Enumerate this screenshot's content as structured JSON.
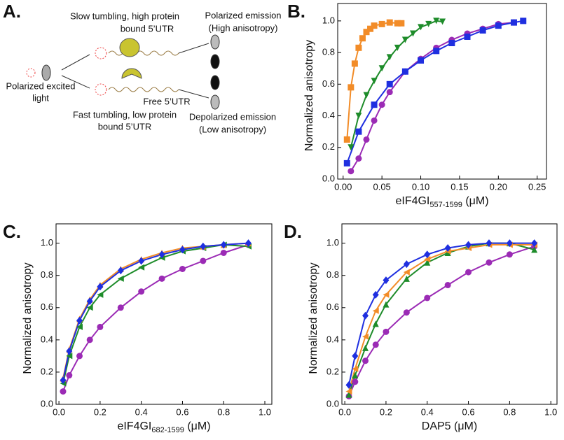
{
  "panel_a": {
    "label": "A.",
    "texts": [
      "Slow tumbling, high protein",
      "bound  5’UTR",
      "Polarized emission",
      "(High anisotropy)",
      "Polarized excited",
      "light",
      "Free 5’UTR",
      "Fast tumbling, low protein",
      "bound 5’UTR",
      "Depolarized emission",
      "(Low anisotropy)"
    ]
  },
  "chart_data": [
    {
      "type": "scatter",
      "panel_label": "B.",
      "xlabel": "eIF4GI",
      "xlabel_sub": "557-1599",
      "xlabel_unit": " (μM)",
      "ylabel": "Normalized anisotropy",
      "xlim": [
        -0.007,
        0.262
      ],
      "ylim": [
        0,
        1.11
      ],
      "xticks": [
        {
          "value": 0,
          "label": "0.00"
        },
        {
          "value": 0.05,
          "label": "0.05"
        },
        {
          "value": 0.1,
          "label": "0.10"
        },
        {
          "value": 0.15,
          "label": "0.15"
        },
        {
          "value": 0.2,
          "label": "0.20"
        },
        {
          "value": 0.25,
          "label": "0.25"
        }
      ],
      "yticks": [
        {
          "value": 0,
          "label": "0.0"
        },
        {
          "value": 0.2,
          "label": "0.2"
        },
        {
          "value": 0.4,
          "label": "0.4"
        },
        {
          "value": 0.6,
          "label": "0.6"
        },
        {
          "value": 0.8,
          "label": "0.8"
        },
        {
          "value": 1,
          "label": "1.0"
        }
      ],
      "series": [
        {
          "color": "#f28c28",
          "marker": "square",
          "fit_line": true,
          "x": [
            0.005,
            0.01,
            0.015,
            0.02,
            0.025,
            0.03,
            0.035,
            0.04,
            0.05,
            0.06,
            0.07,
            0.075
          ],
          "values": [
            0.25,
            0.58,
            0.73,
            0.83,
            0.89,
            0.93,
            0.95,
            0.97,
            0.98,
            0.99,
            0.985,
            0.985
          ]
        },
        {
          "color": "#1e8c2a",
          "marker": "triangle-down",
          "fit_line": true,
          "x": [
            0.01,
            0.02,
            0.03,
            0.04,
            0.05,
            0.06,
            0.07,
            0.08,
            0.09,
            0.1,
            0.11,
            0.12,
            0.128
          ],
          "values": [
            0.2,
            0.4,
            0.53,
            0.62,
            0.7,
            0.77,
            0.83,
            0.88,
            0.92,
            0.96,
            0.98,
            1.0,
            0.995
          ]
        },
        {
          "color": "#9b2bb5",
          "marker": "circle",
          "fit_line": true,
          "x": [
            0.01,
            0.02,
            0.03,
            0.04,
            0.05,
            0.06,
            0.08,
            0.1,
            0.12,
            0.14,
            0.16,
            0.18,
            0.2,
            0.22
          ],
          "values": [
            0.05,
            0.13,
            0.25,
            0.37,
            0.47,
            0.55,
            0.68,
            0.76,
            0.83,
            0.88,
            0.92,
            0.95,
            0.98,
            0.99
          ]
        },
        {
          "color": "#1f2fe0",
          "marker": "square",
          "fit_line": true,
          "x": [
            0.005,
            0.02,
            0.04,
            0.06,
            0.08,
            0.1,
            0.12,
            0.14,
            0.16,
            0.18,
            0.2,
            0.22,
            0.232
          ],
          "values": [
            0.1,
            0.3,
            0.47,
            0.6,
            0.68,
            0.75,
            0.81,
            0.86,
            0.9,
            0.94,
            0.97,
            0.99,
            1.0
          ]
        }
      ]
    },
    {
      "type": "scatter",
      "panel_label": "C.",
      "xlabel": "eIF4GI",
      "xlabel_sub": "682-1599",
      "xlabel_unit": " (μM)",
      "ylabel": "Normalized anisotropy",
      "xlim": [
        -0.014,
        1.034
      ],
      "ylim": [
        0,
        1.12
      ],
      "xticks": [
        {
          "value": 0,
          "label": "0.0"
        },
        {
          "value": 0.2,
          "label": "0.2"
        },
        {
          "value": 0.4,
          "label": "0.4"
        },
        {
          "value": 0.6,
          "label": "0.6"
        },
        {
          "value": 0.8,
          "label": "0.8"
        },
        {
          "value": 1,
          "label": "1.0"
        }
      ],
      "yticks": [
        {
          "value": 0,
          "label": "0.0"
        },
        {
          "value": 0.2,
          "label": "0.2"
        },
        {
          "value": 0.4,
          "label": "0.4"
        },
        {
          "value": 0.6,
          "label": "0.6"
        },
        {
          "value": 0.8,
          "label": "0.8"
        },
        {
          "value": 1,
          "label": "1.0"
        }
      ],
      "series": [
        {
          "color": "#9b2bb5",
          "marker": "circle",
          "fit_line": true,
          "x": [
            0.02,
            0.05,
            0.1,
            0.15,
            0.2,
            0.3,
            0.4,
            0.5,
            0.6,
            0.7,
            0.8,
            0.92
          ],
          "values": [
            0.08,
            0.18,
            0.3,
            0.4,
            0.48,
            0.6,
            0.7,
            0.78,
            0.84,
            0.89,
            0.94,
            0.99
          ]
        },
        {
          "color": "#1e8c2a",
          "marker": "triangle-left",
          "fit_line": true,
          "x": [
            0.02,
            0.05,
            0.1,
            0.15,
            0.2,
            0.3,
            0.4,
            0.5,
            0.6,
            0.7,
            0.8,
            0.92
          ],
          "values": [
            0.13,
            0.3,
            0.48,
            0.6,
            0.68,
            0.78,
            0.85,
            0.91,
            0.95,
            0.97,
            0.99,
            0.98
          ]
        },
        {
          "color": "#f28c28",
          "marker": "triangle-up",
          "fit_line": true,
          "x": [
            0.02,
            0.05,
            0.1,
            0.15,
            0.2,
            0.3,
            0.4,
            0.5,
            0.6,
            0.7,
            0.8,
            0.92
          ],
          "values": [
            0.16,
            0.34,
            0.53,
            0.65,
            0.74,
            0.84,
            0.9,
            0.94,
            0.97,
            0.98,
            0.99,
            1.0
          ]
        },
        {
          "color": "#1f2fe0",
          "marker": "diamond",
          "fit_line": true,
          "x": [
            0.02,
            0.05,
            0.1,
            0.15,
            0.2,
            0.3,
            0.4,
            0.5,
            0.6,
            0.7,
            0.8,
            0.92
          ],
          "values": [
            0.15,
            0.33,
            0.52,
            0.64,
            0.73,
            0.83,
            0.89,
            0.93,
            0.96,
            0.98,
            0.99,
            1.0
          ]
        }
      ]
    },
    {
      "type": "scatter",
      "panel_label": "D.",
      "xlabel": "DAP5",
      "xlabel_unit": " (μM)",
      "ylabel": "Normalized anisotropy",
      "xlim": [
        -0.014,
        1.03
      ],
      "ylim": [
        0,
        1.12
      ],
      "xticks": [
        {
          "value": 0,
          "label": "0.0"
        },
        {
          "value": 0.2,
          "label": "0.2"
        },
        {
          "value": 0.4,
          "label": "0.4"
        },
        {
          "value": 0.6,
          "label": "0.6"
        },
        {
          "value": 0.8,
          "label": "0.8"
        },
        {
          "value": 1,
          "label": "1.0"
        }
      ],
      "yticks": [
        {
          "value": 0,
          "label": "0.0"
        },
        {
          "value": 0.2,
          "label": "0.2"
        },
        {
          "value": 0.4,
          "label": "0.4"
        },
        {
          "value": 0.6,
          "label": "0.6"
        },
        {
          "value": 0.8,
          "label": "0.8"
        },
        {
          "value": 1,
          "label": "1.0"
        }
      ],
      "series": [
        {
          "color": "#9b2bb5",
          "marker": "circle",
          "fit_line": true,
          "x": [
            0.02,
            0.05,
            0.1,
            0.15,
            0.2,
            0.3,
            0.4,
            0.5,
            0.6,
            0.7,
            0.8,
            0.92
          ],
          "values": [
            0.05,
            0.14,
            0.27,
            0.37,
            0.45,
            0.57,
            0.66,
            0.74,
            0.82,
            0.88,
            0.93,
            0.98
          ]
        },
        {
          "color": "#1e8c2a",
          "marker": "triangle-up",
          "fit_line": true,
          "x": [
            0.02,
            0.05,
            0.1,
            0.15,
            0.2,
            0.3,
            0.4,
            0.5,
            0.6,
            0.7,
            0.8,
            0.92
          ],
          "values": [
            0.06,
            0.18,
            0.35,
            0.5,
            0.62,
            0.78,
            0.88,
            0.94,
            0.98,
            1.0,
            1.0,
            0.96
          ]
        },
        {
          "color": "#f28c28",
          "marker": "triangle-left",
          "fit_line": true,
          "x": [
            0.02,
            0.05,
            0.1,
            0.15,
            0.2,
            0.3,
            0.4,
            0.5,
            0.6,
            0.7,
            0.8,
            0.92
          ],
          "values": [
            0.08,
            0.22,
            0.42,
            0.58,
            0.68,
            0.82,
            0.9,
            0.95,
            0.97,
            0.99,
            0.99,
            0.99
          ]
        },
        {
          "color": "#1f2fe0",
          "marker": "diamond",
          "fit_line": true,
          "x": [
            0.02,
            0.05,
            0.1,
            0.15,
            0.2,
            0.3,
            0.4,
            0.5,
            0.6,
            0.7,
            0.8,
            0.92
          ],
          "values": [
            0.12,
            0.3,
            0.55,
            0.68,
            0.77,
            0.87,
            0.93,
            0.97,
            0.99,
            1.0,
            1.0,
            1.0
          ]
        }
      ]
    }
  ]
}
